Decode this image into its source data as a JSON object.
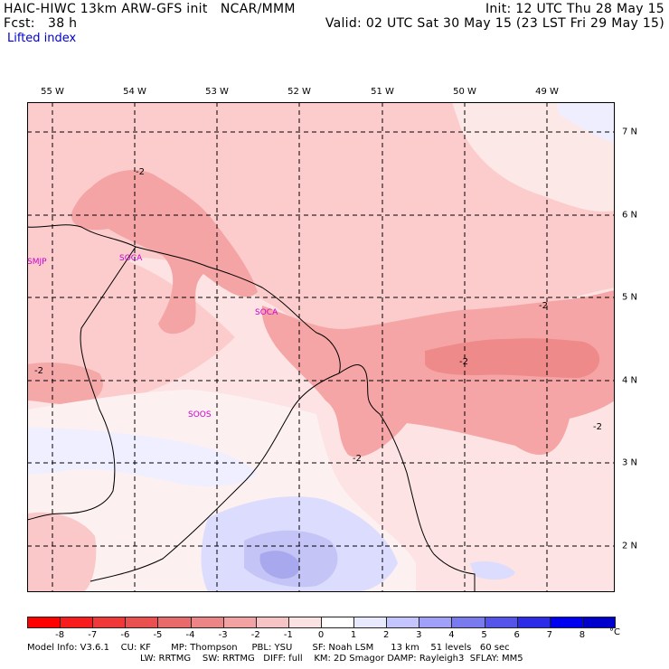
{
  "header": {
    "line1_left": "HAIC-HIWC 13km ARW-GFS init   NCAR/MMM",
    "line1_right": "Init: 12 UTC Thu 28 May 15",
    "line2_left": "Fcst:   38 h",
    "line2_right": "Valid: 02 UTC Sat 30 May 15 (23 LST Fri 29 May 15)",
    "field_label": "Lifted index"
  },
  "axes": {
    "lon_labels": [
      "55 W",
      "54 W",
      "53 W",
      "52 W",
      "51 W",
      "50 W",
      "49 W"
    ],
    "lat_labels": [
      "7 N",
      "6 N",
      "5 N",
      "4 N",
      "3 N",
      "2 N"
    ]
  },
  "stations": [
    "SMJP",
    "SOCA",
    "SOCA",
    "SOOS"
  ],
  "contour_labels": [
    "-2",
    "-2",
    "-2",
    "-2",
    "-2",
    "-2"
  ],
  "colorbar": {
    "labels": [
      "-8",
      "-7",
      "-6",
      "-5",
      "-4",
      "-3",
      "-2",
      "-1",
      "0",
      "1",
      "2",
      "3",
      "4",
      "5",
      "6",
      "7",
      "8"
    ],
    "unit": "°C",
    "colors": [
      "#ff0000",
      "#f81c1c",
      "#f03838",
      "#ea5050",
      "#e86a6a",
      "#ec8686",
      "#f2a2a2",
      "#f6c4c4",
      "#fbe2e2",
      "#ffffff",
      "#e8e8ff",
      "#c4c4ff",
      "#a0a0f8",
      "#7a7aef",
      "#5454ea",
      "#2c2ce8",
      "#0000f0",
      "#0000cc"
    ]
  },
  "footer": {
    "line1": "Model Info: V3.6.1    CU: KF       MP: Thompson     PBL: YSU       SF: Noah LSM      13 km    51 levels   60 sec",
    "line2": "LW: RRTMG    SW: RRTMG   DIFF: full    KM: 2D Smagor DAMP: Rayleigh3  SFLAY: MM5"
  }
}
